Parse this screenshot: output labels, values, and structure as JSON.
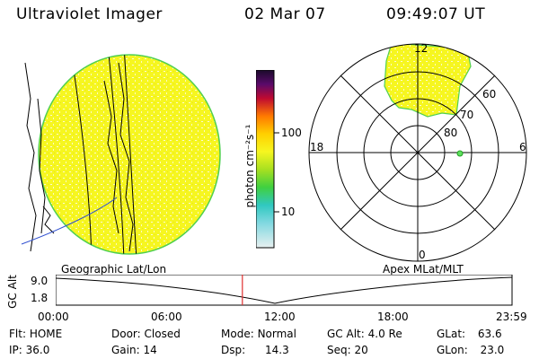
{
  "header": {
    "title": "Ultraviolet Imager",
    "date": "02 Mar 07",
    "time": "09:49:07 UT"
  },
  "colorbar": {
    "unit_label": "photon cm⁻²s⁻¹",
    "ticks": [
      "100",
      "10"
    ]
  },
  "polar_plot": {
    "mlt_labels": {
      "top": "12",
      "left": "18",
      "right": "6",
      "bottom": "0"
    },
    "lat_labels": [
      "60",
      "70",
      "80"
    ]
  },
  "map_labels": {
    "left": "Geographic Lat/Lon",
    "right": "Apex MLat/MLT"
  },
  "timeline": {
    "ylabel": "GC Alt",
    "ytick_top": "9.0",
    "ytick_bottom": "1.8",
    "xticks": [
      "00:00",
      "06:00",
      "12:00",
      "18:00",
      "23:59"
    ],
    "current_fraction": 0.409
  },
  "info": {
    "flt_label": "Flt:",
    "flt_value": "HOME",
    "ip_label": "IP:",
    "ip_value": "36.0",
    "door_label": "Door:",
    "door_value": "Closed",
    "gain_label": "Gain:",
    "gain_value": "14",
    "mode_label": "Mode:",
    "mode_value": "Normal",
    "dsp_label": "Dsp:",
    "dsp_value": "14.3",
    "gcalt_label": "GC Alt:",
    "gcalt_value": "4.0 Re",
    "seq_label": "Seq:",
    "seq_value": "20",
    "glat_label": "GLat:",
    "glat_value": "63.6",
    "glon_label": "GLon:",
    "glon_value": "23.0"
  },
  "colors": {
    "image_fill": "#f5f520",
    "image_edge": "#40d040",
    "marker": "#e03030"
  }
}
